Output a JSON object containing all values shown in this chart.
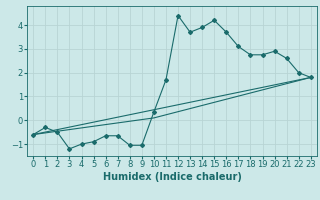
{
  "title": "",
  "xlabel": "Humidex (Indice chaleur)",
  "ylabel": "",
  "background_color": "#cce8e8",
  "line_color": "#1a6b6b",
  "grid_color": "#b8d4d4",
  "xlim": [
    -0.5,
    23.5
  ],
  "ylim": [
    -1.5,
    4.8
  ],
  "xticks": [
    0,
    1,
    2,
    3,
    4,
    5,
    6,
    7,
    8,
    9,
    10,
    11,
    12,
    13,
    14,
    15,
    16,
    17,
    18,
    19,
    20,
    21,
    22,
    23
  ],
  "yticks": [
    -1,
    0,
    1,
    2,
    3,
    4
  ],
  "series1_x": [
    0,
    1,
    2,
    3,
    4,
    5,
    6,
    7,
    8,
    9,
    10,
    11,
    12,
    13,
    14,
    15,
    16,
    17,
    18,
    19,
    20,
    21,
    22,
    23
  ],
  "series1_y": [
    -0.6,
    -0.3,
    -0.5,
    -1.2,
    -1.0,
    -0.9,
    -0.65,
    -0.65,
    -1.05,
    -1.05,
    0.35,
    1.7,
    4.4,
    3.7,
    3.9,
    4.2,
    3.7,
    3.1,
    2.75,
    2.75,
    2.9,
    2.6,
    2.0,
    1.8
  ],
  "series2_x": [
    0,
    10,
    23
  ],
  "series2_y": [
    -0.6,
    0.1,
    1.8
  ],
  "series3_x": [
    0,
    23
  ],
  "series3_y": [
    -0.6,
    1.8
  ],
  "font_size": 6.0,
  "xlabel_fontsize": 7.0
}
